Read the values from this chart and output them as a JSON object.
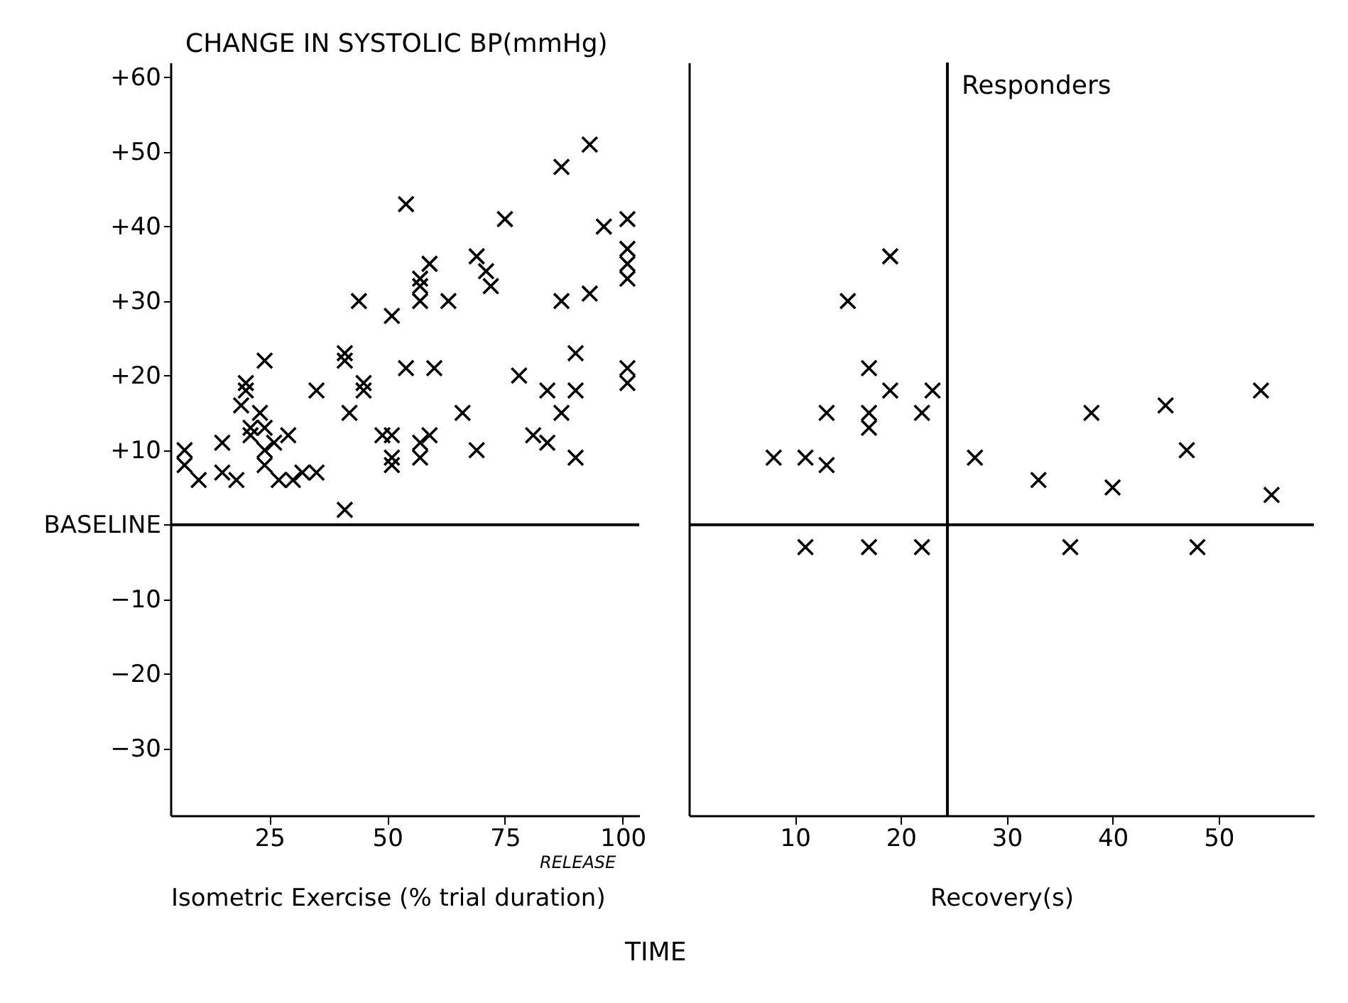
{
  "chart_data": [
    {
      "type": "scatter",
      "ylabel": "CHANGE IN SYSTOLIC BP(mmHg)",
      "xlabel": "Isometric Exercise (% trial duration)",
      "annotations": [
        "RELEASE",
        "TIME"
      ],
      "xlim": [
        4,
        103.5
      ],
      "xticks": [
        25,
        50,
        75,
        100
      ],
      "ylim": [
        -39,
        62
      ],
      "yticks": [
        {
          "value": -30,
          "label": "−30"
        },
        {
          "value": -20,
          "label": "−20"
        },
        {
          "value": -10,
          "label": "−10"
        },
        {
          "value": 0,
          "label": "BASELINE"
        },
        {
          "value": 10,
          "label": "+10"
        },
        {
          "value": 20,
          "label": "+20"
        },
        {
          "value": 30,
          "label": "+30"
        },
        {
          "value": 40,
          "label": "+40"
        },
        {
          "value": 50,
          "label": "+50"
        },
        {
          "value": 60,
          "label": "+60"
        }
      ],
      "marker": "cross",
      "legend": false,
      "ref_lines": [
        {
          "axis": "y",
          "value": 0
        }
      ],
      "series": [
        {
          "color": "#000000",
          "x": [
            7,
            7,
            10,
            15,
            15,
            18,
            20,
            20,
            19,
            21,
            23,
            21,
            24,
            24,
            24,
            26,
            29,
            27,
            30,
            32,
            35,
            24,
            35,
            41,
            41,
            42,
            41,
            44,
            45,
            45,
            51,
            49,
            51,
            51,
            54,
            54,
            60,
            57,
            59,
            57,
            57,
            63,
            51,
            57,
            57,
            59,
            66,
            69,
            69,
            71,
            72,
            75,
            78,
            81,
            84,
            84,
            87,
            93,
            87,
            93,
            87,
            90,
            90,
            90,
            96,
            101,
            101,
            101,
            101,
            101,
            101
          ],
          "values": [
            10,
            8,
            6,
            11,
            7,
            6,
            19,
            18,
            16,
            13,
            15,
            12,
            13,
            10,
            8,
            11,
            12,
            6,
            6,
            7,
            7,
            22,
            18,
            23,
            22,
            15,
            2,
            30,
            19,
            18,
            28,
            12,
            12,
            8,
            43,
            21,
            21,
            33,
            35,
            32,
            30,
            30,
            9,
            11,
            9,
            12,
            15,
            10,
            36,
            34,
            32,
            41,
            20,
            12,
            18,
            11,
            48,
            51,
            30,
            31,
            15,
            23,
            18,
            9,
            40,
            41,
            37,
            35,
            33,
            21,
            19
          ]
        }
      ]
    },
    {
      "type": "scatter",
      "xlabel": "Recovery(s)",
      "xlim": [
        0,
        59
      ],
      "xticks": [
        {
          "value": 10,
          "label": "10"
        },
        {
          "value": 20,
          "label": "20"
        },
        {
          "value": 30,
          "label": "30"
        },
        {
          "value": 40,
          "label": "40"
        },
        {
          "value": 50,
          "label": "50"
        }
      ],
      "ylim": [
        -39,
        62
      ],
      "tick_labels": "x",
      "marker": "cross",
      "legend": false,
      "ref_lines": [
        {
          "axis": "y",
          "value": 0
        },
        {
          "axis": "x",
          "value": 24.4,
          "label": "Responders"
        }
      ],
      "series": [
        {
          "color": "#000000",
          "x": [
            8,
            11,
            13,
            13,
            15,
            19,
            17,
            17,
            17,
            19,
            22,
            23,
            27,
            11,
            17,
            22,
            33,
            38,
            40,
            45,
            47,
            54,
            55,
            36,
            48
          ],
          "values": [
            9,
            9,
            15,
            8,
            30,
            36,
            21,
            15,
            13,
            18,
            15,
            18,
            9,
            -3,
            -3,
            -3,
            6,
            15,
            5,
            16,
            10,
            18,
            4,
            -3,
            -3
          ]
        }
      ]
    }
  ]
}
